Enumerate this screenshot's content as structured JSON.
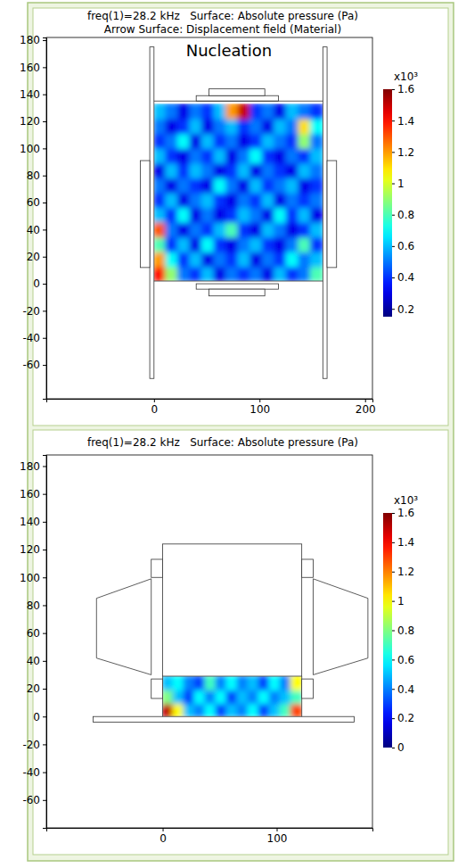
{
  "chart_data": [
    {
      "type": "heatmap",
      "title": "freq(1)=28.2 kHz   Surface: Absolute pressure (Pa)",
      "subtitle": "Arrow Surface: Displacement field (Material)",
      "annotation": "Nucleation",
      "xlim": [
        -102,
        207
      ],
      "ylim": [
        -85,
        182
      ],
      "xticks": [
        0,
        100,
        200
      ],
      "yticks": [
        -60,
        -40,
        -20,
        0,
        20,
        40,
        60,
        80,
        100,
        120,
        140,
        160,
        180
      ],
      "x": [
        5.7,
        17.1,
        28.6,
        40,
        51.4,
        62.9,
        74.3,
        85.7,
        97.1,
        108.6,
        120,
        131.4,
        142.9,
        154.3
      ],
      "y": [
        7.5,
        18.4,
        29.3,
        40.2,
        51.2,
        62.1,
        73,
        83.9,
        94.8,
        105.8,
        116.7,
        127.6
      ],
      "cells": [
        [
          1.4,
          0.9,
          0.5,
          0.4,
          0.6,
          0.3,
          0.5,
          0.4,
          0.5,
          0.3,
          0.6,
          0.4,
          0.5,
          0.8
        ],
        [
          1.2,
          0.7,
          0.4,
          0.6,
          0.3,
          0.5,
          0.4,
          0.6,
          0.3,
          0.5,
          0.4,
          0.7,
          0.5,
          0.6
        ],
        [
          0.8,
          0.4,
          0.6,
          0.3,
          0.7,
          0.4,
          0.3,
          0.5,
          0.6,
          0.4,
          0.3,
          0.5,
          0.8,
          0.4
        ],
        [
          1.3,
          0.5,
          0.3,
          0.5,
          0.4,
          0.6,
          0.8,
          0.4,
          0.3,
          0.6,
          0.5,
          0.3,
          0.4,
          0.6
        ],
        [
          0.6,
          0.4,
          0.7,
          0.3,
          0.5,
          0.3,
          0.4,
          0.6,
          0.5,
          0.3,
          0.7,
          0.4,
          0.6,
          0.3
        ],
        [
          0.4,
          0.6,
          0.3,
          0.5,
          0.6,
          0.4,
          0.3,
          0.5,
          0.4,
          0.6,
          0.3,
          0.5,
          0.4,
          0.5
        ],
        [
          0.5,
          0.3,
          0.5,
          0.4,
          0.3,
          0.7,
          0.5,
          0.3,
          0.6,
          0.4,
          0.5,
          0.6,
          0.3,
          0.4
        ],
        [
          0.3,
          0.6,
          0.4,
          0.6,
          0.5,
          0.3,
          0.4,
          0.6,
          0.3,
          0.5,
          0.4,
          0.3,
          0.6,
          0.5
        ],
        [
          0.6,
          0.4,
          0.3,
          0.5,
          0.4,
          0.6,
          0.3,
          0.5,
          0.7,
          0.4,
          0.3,
          0.5,
          0.4,
          0.6
        ],
        [
          0.4,
          0.5,
          0.7,
          0.3,
          0.6,
          0.4,
          0.5,
          0.3,
          0.4,
          0.6,
          0.5,
          0.4,
          0.9,
          0.5
        ],
        [
          0.5,
          0.3,
          0.4,
          0.6,
          0.3,
          0.5,
          0.6,
          0.4,
          0.5,
          0.3,
          0.6,
          0.5,
          1.1,
          0.7
        ],
        [
          0.6,
          0.5,
          0.3,
          0.5,
          0.4,
          0.6,
          1.2,
          1.5,
          0.4,
          0.5,
          0.3,
          0.6,
          0.5,
          0.4
        ]
      ],
      "colorbar": {
        "range": [
          0.15,
          1.6
        ],
        "ticks": [
          0.2,
          0.4,
          0.6,
          0.8,
          1,
          1.2,
          1.4,
          1.6
        ],
        "label": "x10³"
      }
    },
    {
      "type": "heatmap",
      "title": "freq(1)=28.2 kHz   Surface: Absolute pressure (Pa)",
      "xlim": [
        -102,
        184
      ],
      "ylim": [
        -80,
        188
      ],
      "xticks": [
        0,
        100
      ],
      "yticks": [
        -60,
        -40,
        -20,
        0,
        20,
        40,
        60,
        80,
        100,
        120,
        140,
        160,
        180
      ],
      "x": [
        4.69,
        14.08,
        23.46,
        32.85,
        42.23,
        51.62,
        61,
        70.38,
        79.77,
        89.15,
        98.54,
        107.92,
        117.31
      ],
      "y": [
        4.8,
        14.5,
        24.2
      ],
      "cells": [
        [
          1.5,
          1.0,
          0.5,
          0.4,
          0.6,
          0.3,
          0.5,
          0.4,
          0.6,
          0.3,
          0.5,
          0.7,
          1.3
        ],
        [
          0.8,
          0.5,
          0.3,
          0.6,
          0.4,
          0.6,
          0.3,
          0.5,
          0.4,
          0.6,
          0.4,
          0.5,
          0.7
        ],
        [
          0.5,
          0.6,
          0.4,
          0.3,
          0.7,
          0.4,
          0.6,
          0.4,
          0.5,
          0.3,
          0.6,
          0.4,
          1.0
        ]
      ],
      "colorbar": {
        "range": [
          0,
          1.6
        ],
        "ticks": [
          0,
          0.2,
          0.4,
          0.6,
          0.8,
          1,
          1.2,
          1.4,
          1.6
        ],
        "label": "x10³"
      }
    }
  ]
}
